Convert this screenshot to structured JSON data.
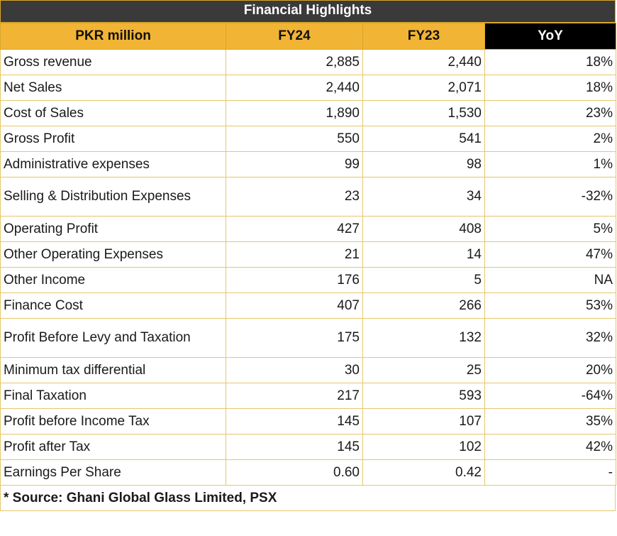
{
  "title": "Financial Highlights",
  "headers": [
    "PKR million",
    "FY24",
    "FY23",
    "YoY"
  ],
  "rows": [
    [
      "Gross revenue",
      "2,885",
      "2,440",
      "18%"
    ],
    [
      "Net Sales",
      "2,440",
      "2,071",
      "18%"
    ],
    [
      "Cost of Sales",
      "1,890",
      "1,530",
      "23%"
    ],
    [
      "Gross Profit",
      "550",
      "541",
      "2%"
    ],
    [
      "Administrative expenses",
      "99",
      "98",
      "1%"
    ],
    [
      "Selling & Distribution Expenses",
      "23",
      "34",
      "-32%"
    ],
    [
      "Operating Profit",
      "427",
      "408",
      "5%"
    ],
    [
      "Other Operating Expenses",
      "21",
      "14",
      "47%"
    ],
    [
      "Other Income",
      "176",
      "5",
      "NA"
    ],
    [
      "Finance Cost",
      "407",
      "266",
      "53%"
    ],
    [
      "Profit Before Levy and Taxation",
      "175",
      "132",
      "32%"
    ],
    [
      "Minimum tax differential",
      "30",
      "25",
      "20%"
    ],
    [
      "Final Taxation",
      "217",
      "593",
      "-64%"
    ],
    [
      "Profit before Income Tax",
      "145",
      "107",
      "35%"
    ],
    [
      "Profit after Tax",
      "145",
      "102",
      "42%"
    ],
    [
      "Earnings Per Share",
      "0.60",
      "0.42",
      "-"
    ]
  ],
  "source": "* Source: Ghani Global Glass Limited, PSX",
  "colors": {
    "header_gold": "#f1b434",
    "title_bg": "#3a3a3a",
    "yoy_header_bg": "#000000",
    "border": "#e6c76a"
  }
}
